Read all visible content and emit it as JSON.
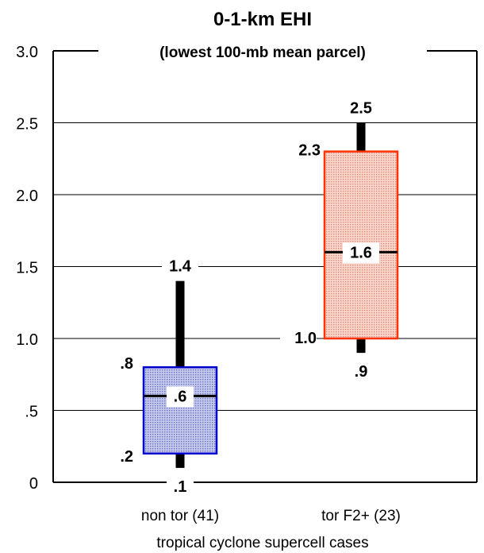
{
  "chart_data": {
    "type": "box",
    "title": "0-1-km EHI",
    "subtitle": "(lowest 100-mb mean parcel)",
    "xlabel": "tropical cyclone supercell cases",
    "ylabel": "",
    "ylim": [
      0,
      3.0
    ],
    "yticks": [
      0,
      0.5,
      1.0,
      1.5,
      2.0,
      2.5,
      3.0
    ],
    "ytick_labels": [
      "0",
      ".5",
      "1.0",
      "1.5",
      "2.0",
      "2.5",
      "3.0"
    ],
    "grid": true,
    "series": [
      {
        "category": "non tor (41)",
        "whisker_low": 0.1,
        "q1": 0.2,
        "median": 0.6,
        "q3": 0.8,
        "whisker_high": 1.4,
        "labels": {
          "whisker_low": ".1",
          "q1": ".2",
          "median": ".6",
          "q3": ".8",
          "whisker_high": "1.4"
        },
        "box_color": "#0000cc",
        "fill_color": "#aab0dd"
      },
      {
        "category": "tor F2+ (23)",
        "whisker_low": 0.9,
        "q1": 1.0,
        "median": 1.6,
        "q3": 2.3,
        "whisker_high": 2.5,
        "labels": {
          "whisker_low": ".9",
          "q1": "1.0",
          "median": "1.6",
          "q3": "2.3",
          "whisker_high": "2.5"
        },
        "box_color": "#ff3300",
        "fill_color": "#f4b8aa"
      }
    ]
  }
}
